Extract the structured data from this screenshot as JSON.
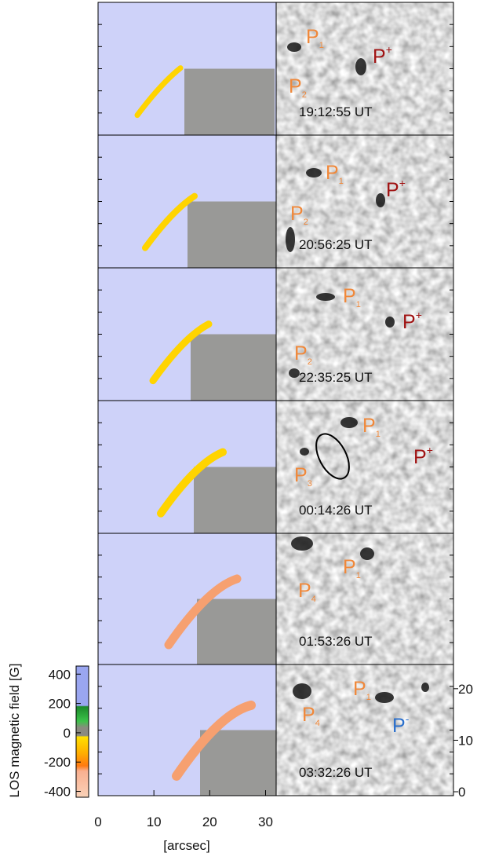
{
  "panels": [
    {
      "time": "19:12:55 UT",
      "labels": [
        {
          "text": "P",
          "sub": "1",
          "color": "#f0883a"
        },
        {
          "text": "P",
          "sup": "+",
          "color": "#a01212"
        },
        {
          "text": "P",
          "sub": "2",
          "color": "#f0883a"
        }
      ]
    },
    {
      "time": "20:56:25 UT",
      "labels": [
        {
          "text": "P",
          "sub": "1",
          "color": "#f0883a"
        },
        {
          "text": "P",
          "sup": "+",
          "color": "#a01212"
        },
        {
          "text": "P",
          "sub": "2",
          "color": "#f0883a"
        }
      ]
    },
    {
      "time": "22:35:25 UT",
      "labels": [
        {
          "text": "P",
          "sub": "1",
          "color": "#f0883a"
        },
        {
          "text": "P",
          "sup": "+",
          "color": "#a01212"
        },
        {
          "text": "P",
          "sub": "2",
          "color": "#f0883a"
        }
      ]
    },
    {
      "time": "00:14:26 UT",
      "labels": [
        {
          "text": "P",
          "sub": "1",
          "color": "#f0883a"
        },
        {
          "text": "P",
          "sup": "+",
          "color": "#a01212"
        },
        {
          "text": "P",
          "sub": "3",
          "color": "#f0883a"
        }
      ]
    },
    {
      "time": "01:53:26 UT",
      "labels": [
        {
          "text": "P",
          "sub": "1",
          "color": "#f0883a"
        },
        {
          "text": "P",
          "sub": "4",
          "color": "#f0883a"
        }
      ]
    },
    {
      "time": "03:32:26 UT",
      "labels": [
        {
          "text": "P",
          "sub": "1",
          "color": "#f0883a"
        },
        {
          "text": "P",
          "sub": "4",
          "color": "#f0883a"
        },
        {
          "text": "P",
          "sup": "-",
          "color": "#2a6fcc"
        }
      ]
    }
  ],
  "x_axis": {
    "label": "[arcsec]",
    "lim": [
      0,
      31.9
    ],
    "ticks": [
      0,
      10,
      20,
      30
    ]
  },
  "y_axis": {
    "lim": [
      -0.76,
      24.7
    ],
    "ticks": [
      0,
      10,
      20
    ]
  },
  "colorbar": {
    "label": "LOS magnetic field [G]",
    "lim": [
      -440,
      455
    ],
    "ticks": [
      400,
      200,
      0,
      -200,
      -400
    ]
  }
}
